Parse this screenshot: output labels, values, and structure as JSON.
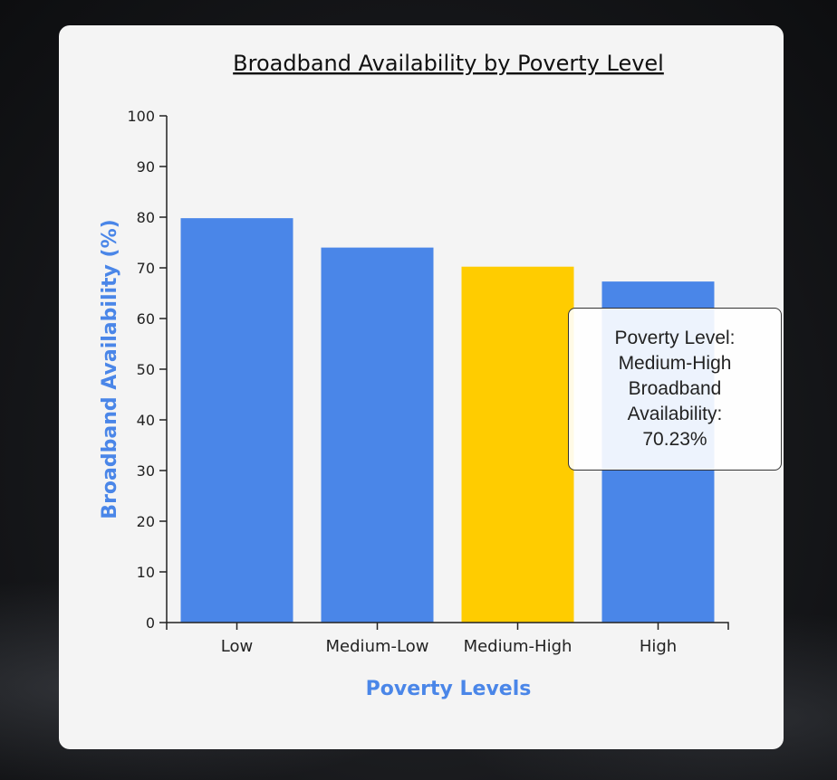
{
  "chart_data": {
    "type": "bar",
    "title": "Broadband Availability by Poverty Level",
    "xlabel": "Poverty Levels",
    "ylabel": "Broadband Availability (%)",
    "categories": [
      "Low",
      "Medium-Low",
      "Medium-High",
      "High"
    ],
    "values": [
      79.8,
      74.0,
      70.23,
      67.3
    ],
    "ylim": [
      0,
      100
    ],
    "yticks": [
      0,
      10,
      20,
      30,
      40,
      50,
      60,
      70,
      80,
      90,
      100
    ],
    "grid": false,
    "highlighted_index": 2,
    "colors": {
      "bar": "#4a86e8",
      "highlight": "#ffcc00",
      "axis_title": "#4a86e8"
    }
  },
  "tooltip": {
    "line1": "Poverty Level:",
    "line2": "Medium-High",
    "line3": "Broadband",
    "line4": "Availability:",
    "line5": "70.23%"
  }
}
